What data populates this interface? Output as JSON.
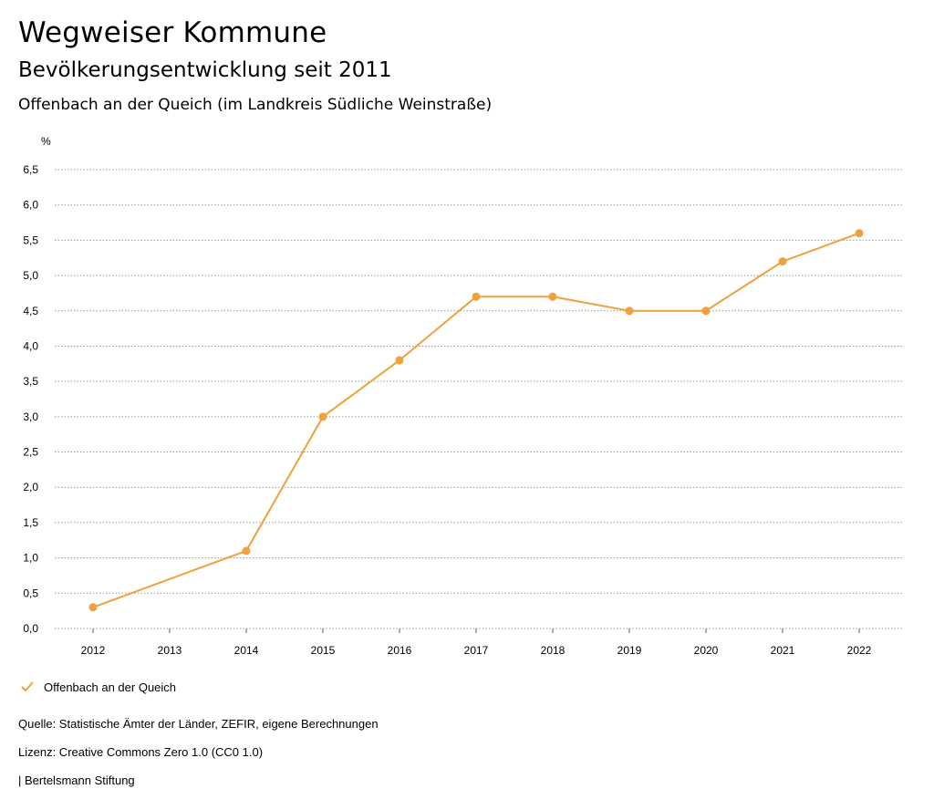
{
  "header": {
    "title": "Wegweiser Kommune",
    "subtitle": "Bevölkerungsentwicklung seit 2011",
    "subtitle2": "Offenbach an der Queich (im Landkreis Südliche Weinstraße)"
  },
  "colors": {
    "series": "#f0a03c",
    "grid": "#9a9a9a"
  },
  "chart_data": {
    "type": "line",
    "title": "Bevölkerungsentwicklung seit 2011",
    "ylabel": "%",
    "xlabel": "",
    "x": [
      "2012",
      "2013",
      "2014",
      "2015",
      "2016",
      "2017",
      "2018",
      "2019",
      "2020",
      "2021",
      "2022"
    ],
    "ylim": [
      0,
      6.5
    ],
    "yticks": [
      "0,0",
      "0,5",
      "1,0",
      "1,5",
      "2,0",
      "2,5",
      "3,0",
      "3,5",
      "4,0",
      "4,5",
      "5,0",
      "5,5",
      "6,0",
      "6,5"
    ],
    "grid": true,
    "legend_position": "bottom-left",
    "series": [
      {
        "name": "Offenbach an der Queich",
        "points": [
          {
            "x": "2012",
            "y": 0.3
          },
          {
            "x": "2014",
            "y": 1.1
          },
          {
            "x": "2015",
            "y": 3.0
          },
          {
            "x": "2016",
            "y": 3.8
          },
          {
            "x": "2017",
            "y": 4.7
          },
          {
            "x": "2018",
            "y": 4.7
          },
          {
            "x": "2019",
            "y": 4.5
          },
          {
            "x": "2020",
            "y": 4.5
          },
          {
            "x": "2021",
            "y": 5.2
          },
          {
            "x": "2022",
            "y": 5.6
          }
        ]
      }
    ]
  },
  "legend": {
    "label": "Offenbach an der Queich"
  },
  "footer": {
    "source": "Quelle: Statistische Ämter der Länder, ZEFIR, eigene Berechnungen",
    "license": "Lizenz: Creative Commons Zero 1.0 (CC0 1.0)",
    "publisher": "| Bertelsmann Stiftung"
  }
}
